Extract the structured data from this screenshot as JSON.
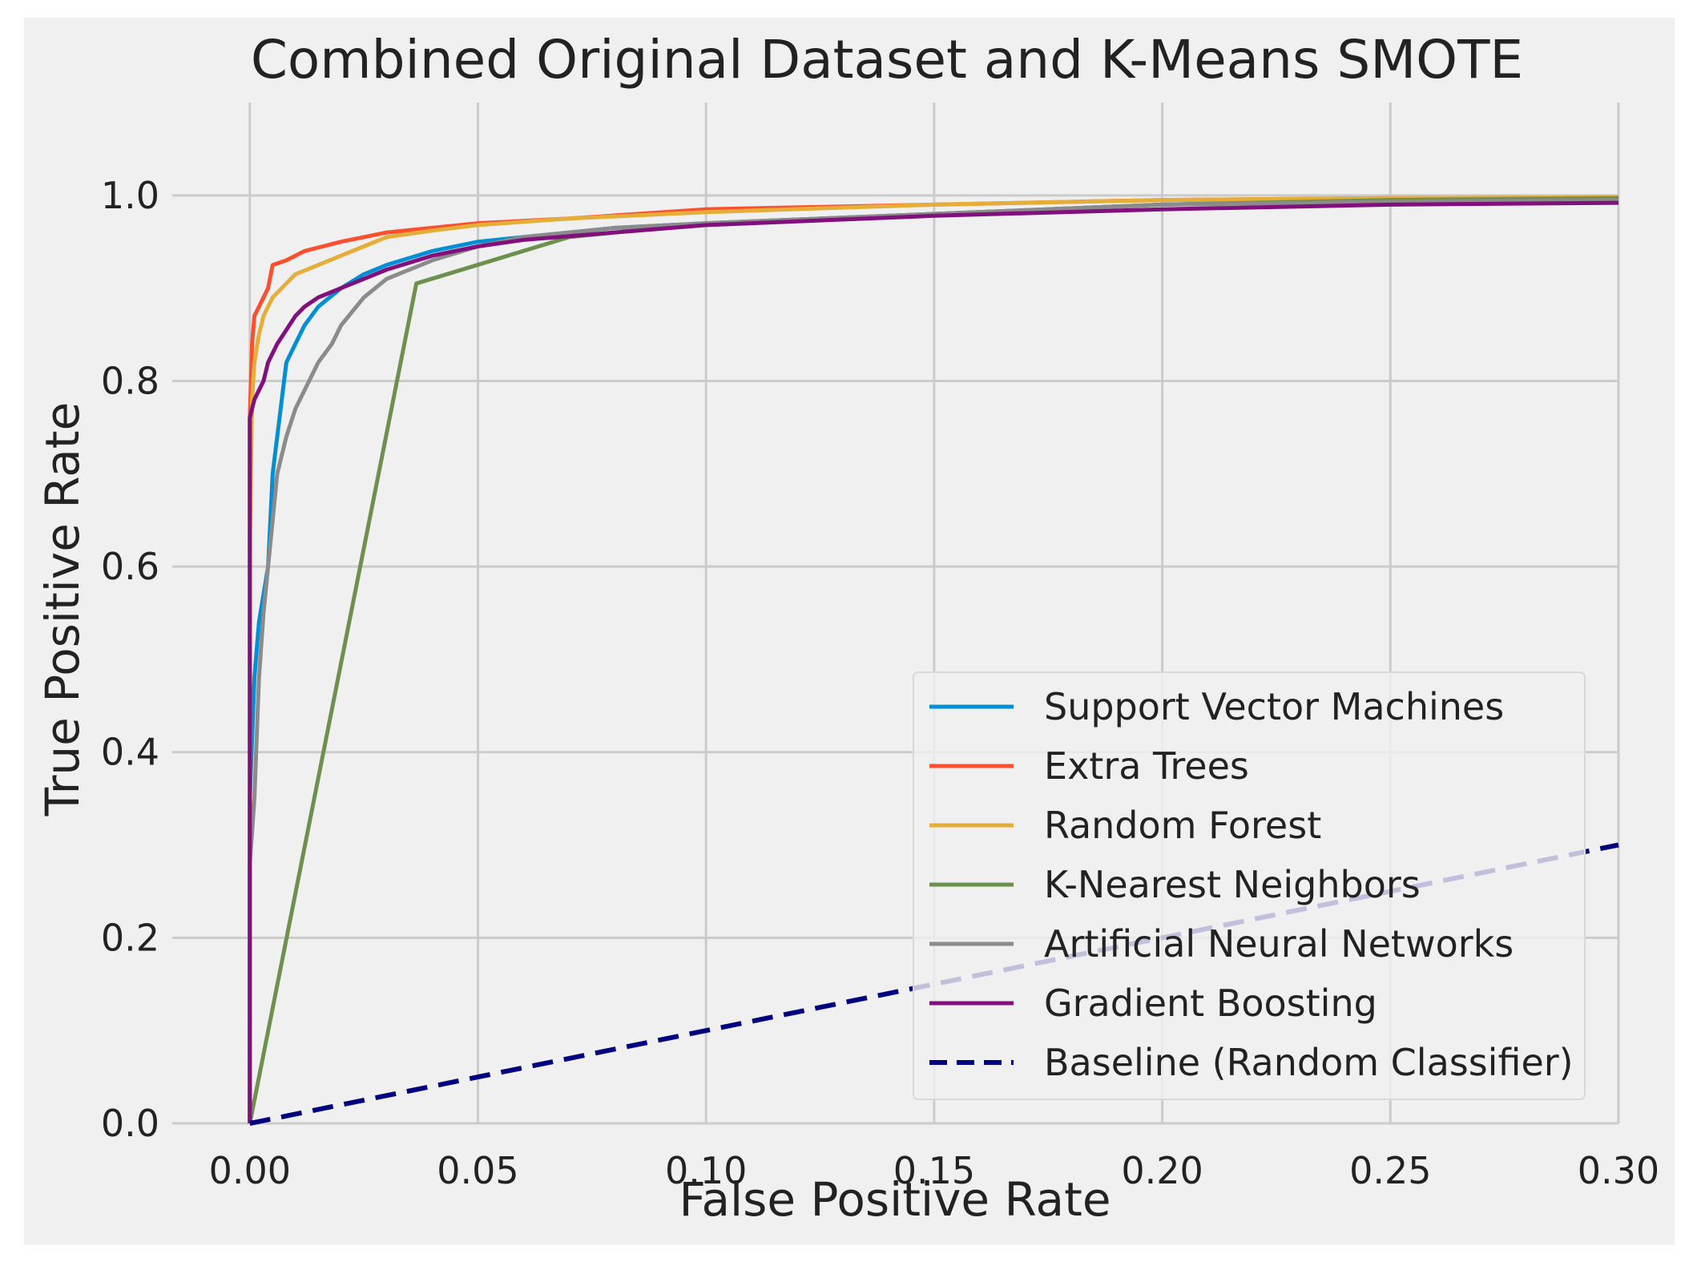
{
  "chart_data": {
    "type": "line",
    "title": "Combined Original Dataset and K-Means SMOTE",
    "xlabel": "False Positive Rate",
    "ylabel": "True Positive Rate",
    "xlim": [
      -0.017,
      0.3
    ],
    "ylim": [
      0.0,
      1.1
    ],
    "xticks": [
      0.0,
      0.05,
      0.1,
      0.15,
      0.2,
      0.25,
      0.3
    ],
    "xtick_labels": [
      "0.00",
      "0.05",
      "0.10",
      "0.15",
      "0.20",
      "0.25",
      "0.30"
    ],
    "yticks": [
      0.0,
      0.2,
      0.4,
      0.6,
      0.8,
      1.0
    ],
    "ytick_labels": [
      "0.0",
      "0.2",
      "0.4",
      "0.6",
      "0.8",
      "1.0"
    ],
    "grid": true,
    "legend_position": "lower-right",
    "colors": {
      "background": "#f0f0f0",
      "grid": "#cbcbcb",
      "text": "#222222",
      "legend_bg": "#f0f0f0",
      "legend_border": "#d8d8d8"
    },
    "series": [
      {
        "name": "Support Vector Machines",
        "color": "#008fd5",
        "dash": false,
        "x": [
          0.0,
          0.0,
          0.001,
          0.002,
          0.003,
          0.004,
          0.005,
          0.006,
          0.007,
          0.008,
          0.01,
          0.012,
          0.015,
          0.02,
          0.025,
          0.03,
          0.04,
          0.05,
          0.06,
          0.08,
          0.1,
          0.15,
          0.2,
          0.25,
          0.3
        ],
        "y": [
          0.0,
          0.35,
          0.48,
          0.54,
          0.57,
          0.6,
          0.7,
          0.74,
          0.78,
          0.82,
          0.84,
          0.86,
          0.88,
          0.9,
          0.915,
          0.925,
          0.94,
          0.95,
          0.955,
          0.965,
          0.97,
          0.98,
          0.99,
          0.995,
          0.997
        ]
      },
      {
        "name": "Extra Trees",
        "color": "#fc4f30",
        "dash": false,
        "x": [
          0.0,
          0.0,
          0.0005,
          0.001,
          0.002,
          0.003,
          0.004,
          0.005,
          0.008,
          0.012,
          0.016,
          0.02,
          0.025,
          0.03,
          0.04,
          0.05,
          0.07,
          0.1,
          0.15,
          0.2,
          0.25,
          0.3
        ],
        "y": [
          0.0,
          0.76,
          0.84,
          0.87,
          0.88,
          0.89,
          0.9,
          0.925,
          0.93,
          0.94,
          0.945,
          0.95,
          0.955,
          0.96,
          0.965,
          0.97,
          0.975,
          0.985,
          0.99,
          0.995,
          0.997,
          0.998
        ]
      },
      {
        "name": "Random Forest",
        "color": "#e5ae38",
        "dash": false,
        "x": [
          0.0,
          0.0,
          0.0005,
          0.001,
          0.002,
          0.003,
          0.004,
          0.005,
          0.008,
          0.01,
          0.015,
          0.02,
          0.025,
          0.03,
          0.04,
          0.05,
          0.07,
          0.1,
          0.15,
          0.2,
          0.25,
          0.3
        ],
        "y": [
          0.0,
          0.62,
          0.78,
          0.82,
          0.85,
          0.87,
          0.88,
          0.89,
          0.905,
          0.915,
          0.925,
          0.935,
          0.945,
          0.955,
          0.962,
          0.968,
          0.975,
          0.982,
          0.99,
          0.995,
          0.997,
          0.998
        ]
      },
      {
        "name": "K-Nearest Neighbors",
        "color": "#6d904f",
        "dash": false,
        "x": [
          0.0,
          0.0365,
          0.07,
          0.1,
          0.15,
          0.2,
          0.25,
          0.3
        ],
        "y": [
          0.0,
          0.905,
          0.955,
          0.97,
          0.98,
          0.99,
          0.995,
          0.997
        ]
      },
      {
        "name": "Artificial Neural Networks",
        "color": "#8b8b8b",
        "dash": false,
        "x": [
          0.0,
          0.0,
          0.001,
          0.002,
          0.003,
          0.004,
          0.005,
          0.006,
          0.008,
          0.01,
          0.012,
          0.015,
          0.018,
          0.02,
          0.025,
          0.03,
          0.04,
          0.05,
          0.06,
          0.08,
          0.1,
          0.15,
          0.2,
          0.25,
          0.3
        ],
        "y": [
          0.0,
          0.28,
          0.35,
          0.48,
          0.55,
          0.6,
          0.65,
          0.7,
          0.74,
          0.77,
          0.79,
          0.82,
          0.84,
          0.86,
          0.89,
          0.91,
          0.93,
          0.945,
          0.955,
          0.965,
          0.97,
          0.98,
          0.99,
          0.993,
          0.995
        ]
      },
      {
        "name": "Gradient Boosting",
        "color": "#810f7c",
        "dash": false,
        "x": [
          0.0,
          0.0,
          0.0005,
          0.001,
          0.002,
          0.003,
          0.004,
          0.005,
          0.006,
          0.008,
          0.01,
          0.012,
          0.015,
          0.02,
          0.025,
          0.03,
          0.04,
          0.05,
          0.06,
          0.08,
          0.1,
          0.15,
          0.2,
          0.25,
          0.3
        ],
        "y": [
          0.0,
          0.76,
          0.77,
          0.78,
          0.79,
          0.8,
          0.82,
          0.83,
          0.84,
          0.855,
          0.87,
          0.88,
          0.89,
          0.9,
          0.91,
          0.92,
          0.935,
          0.945,
          0.952,
          0.96,
          0.968,
          0.978,
          0.985,
          0.99,
          0.992
        ]
      },
      {
        "name": "Baseline (Random Classifier)",
        "color": "#000080",
        "dash": true,
        "x": [
          0.0,
          0.3
        ],
        "y": [
          0.0,
          0.3
        ]
      }
    ]
  }
}
